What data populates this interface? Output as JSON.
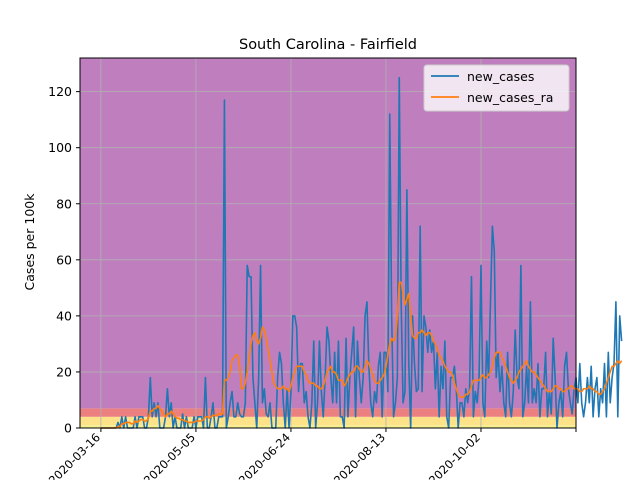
{
  "chart_data": {
    "type": "line",
    "title": "South Carolina - Fairfield",
    "xlabel": "",
    "ylabel": "Cases per 100k",
    "x_start": "2020-03-16",
    "x_end": "2020-11-20",
    "xlim": [
      "2020-03-05",
      "2020-11-21"
    ],
    "ylim": [
      0,
      132
    ],
    "x_ticks": [
      "2020-03-16",
      "2020-05-05",
      "2020-06-24",
      "2020-08-13",
      "2020-10-02",
      "2020-11-21"
    ],
    "x_tick_labels": [
      "2020-03-16",
      "2020-05-05",
      "2020-06-24",
      "2020-08-13",
      "2020-10-02",
      ""
    ],
    "y_ticks": [
      0,
      20,
      40,
      60,
      80,
      100,
      120
    ],
    "grid": true,
    "legend_position": "top-right",
    "bands": [
      {
        "from": 0,
        "to": 1,
        "color": "#f5ee8c"
      },
      {
        "from": 1,
        "to": 4,
        "color": "#fde28a"
      },
      {
        "from": 4,
        "to": 7,
        "color": "#ec7f7f"
      },
      {
        "from": 7,
        "to": 132,
        "color": "#bf7fbf"
      }
    ],
    "series": [
      {
        "name": "new_cases",
        "color": "#1f77b4",
        "values": [
          0,
          0,
          0,
          0,
          0,
          0,
          0,
          0,
          0,
          2,
          0,
          4,
          0,
          4,
          0,
          0,
          0,
          0,
          4,
          0,
          4,
          4,
          4,
          0,
          0,
          4,
          18,
          4,
          9,
          4,
          9,
          0,
          0,
          0,
          4,
          14,
          4,
          9,
          0,
          4,
          0,
          0,
          0,
          5,
          0,
          4,
          0,
          0,
          0,
          4,
          0,
          4,
          4,
          4,
          0,
          18,
          0,
          0,
          4,
          9,
          0,
          0,
          4,
          4,
          4,
          117,
          0,
          4,
          9,
          13,
          4,
          4,
          9,
          5,
          4,
          4,
          9,
          58,
          54,
          54,
          18,
          9,
          0,
          18,
          58,
          9,
          14,
          5,
          4,
          9,
          0,
          0,
          0,
          18,
          27,
          23,
          9,
          0,
          14,
          0,
          13,
          40,
          40,
          36,
          13,
          23,
          23,
          9,
          13,
          4,
          0,
          9,
          31,
          0,
          9,
          31,
          13,
          4,
          18,
          36,
          31,
          18,
          9,
          27,
          9,
          31,
          4,
          4,
          0,
          32,
          4,
          18,
          27,
          36,
          4,
          31,
          18,
          9,
          18,
          40,
          45,
          22,
          9,
          4,
          13,
          9,
          22,
          27,
          4,
          27,
          27,
          13,
          112,
          40,
          4,
          9,
          18,
          125,
          45,
          9,
          13,
          85,
          23,
          0,
          40,
          23,
          13,
          14,
          72,
          13,
          40,
          36,
          27,
          35,
          27,
          31,
          14,
          27,
          4,
          22,
          14,
          31,
          4,
          0,
          18,
          18,
          22,
          14,
          0,
          9,
          9,
          4,
          14,
          9,
          14,
          54,
          4,
          13,
          9,
          18,
          58,
          9,
          4,
          31,
          18,
          45,
          72,
          63,
          18,
          27,
          13,
          22,
          9,
          4,
          27,
          9,
          4,
          13,
          35,
          18,
          14,
          58,
          4,
          9,
          22,
          9,
          45,
          9,
          14,
          9,
          23,
          4,
          14,
          14,
          27,
          4,
          13,
          5,
          32,
          18,
          0,
          9,
          13,
          4,
          22,
          27,
          14,
          9,
          5,
          14,
          18,
          9,
          23,
          9,
          4,
          9,
          18,
          9,
          22,
          4,
          14,
          18,
          4,
          14,
          9,
          23,
          4,
          27,
          9,
          18,
          23,
          45,
          4,
          40,
          31
        ]
      },
      {
        "name": "new_cases_ra",
        "color": "#ff7f0e",
        "values": [
          0,
          0,
          0,
          0,
          0,
          0,
          0,
          0,
          0,
          0.5,
          0.5,
          1.5,
          1.5,
          2,
          2,
          2,
          1.5,
          1.5,
          2.5,
          2,
          2.5,
          3,
          3,
          2.5,
          2.5,
          3.5,
          6,
          6,
          7,
          7,
          8,
          7,
          6,
          5,
          4,
          5,
          5,
          6,
          5,
          4,
          3.5,
          3.5,
          3,
          3,
          2.5,
          2.5,
          2,
          2,
          2,
          2,
          2.5,
          2.5,
          2.5,
          2.5,
          3,
          4,
          4,
          3.5,
          4,
          4.5,
          4.5,
          4.5,
          5,
          5,
          5,
          17,
          17,
          18,
          20,
          24,
          25,
          26,
          26,
          22,
          14,
          14,
          16,
          20,
          25,
          30,
          33,
          34,
          31,
          30,
          32,
          36,
          35,
          32,
          28,
          24,
          20,
          16,
          15,
          14,
          14,
          14,
          15,
          14,
          14,
          13,
          15,
          18,
          20,
          22,
          22,
          22,
          22,
          20,
          19,
          17,
          16,
          16,
          16,
          15,
          15,
          14,
          14,
          15,
          17,
          20,
          21,
          22,
          20,
          20,
          19,
          17,
          17,
          17,
          15,
          16,
          18,
          19,
          20,
          20,
          22,
          22,
          21,
          20,
          20,
          22,
          24,
          23,
          21,
          19,
          17,
          16,
          16,
          17,
          18,
          19,
          22,
          26,
          30,
          32,
          31,
          32,
          40,
          52,
          52,
          48,
          44,
          46,
          48,
          40,
          33,
          32,
          32,
          34,
          34,
          35,
          34,
          33,
          34,
          34,
          33,
          31,
          30,
          28,
          26,
          25,
          24,
          22,
          21,
          20,
          20,
          19,
          16,
          14,
          12,
          11,
          11,
          11,
          12,
          12,
          13,
          15,
          17,
          17,
          17,
          17,
          18,
          19,
          18,
          18,
          19,
          20,
          22,
          25,
          27,
          27,
          27,
          25,
          24,
          22,
          20,
          18,
          17,
          16,
          17,
          18,
          20,
          21,
          22,
          23,
          24,
          22,
          21,
          20,
          20,
          19,
          18,
          17,
          16,
          15,
          14,
          13,
          13,
          13,
          14,
          15,
          15,
          14,
          14,
          13,
          13,
          14,
          14,
          15,
          15,
          14,
          14,
          14,
          13,
          13,
          14,
          14,
          14,
          15,
          14,
          14,
          13,
          13,
          12,
          12,
          13,
          14,
          16,
          18,
          20,
          22,
          22,
          23,
          24,
          23,
          24
        ]
      }
    ]
  }
}
